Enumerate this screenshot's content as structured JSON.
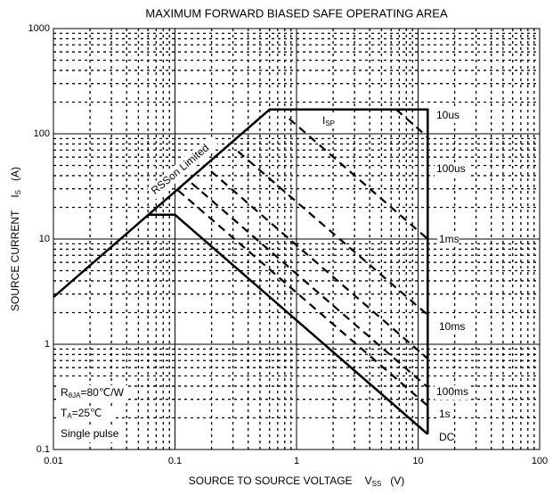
{
  "chart_data": {
    "type": "line",
    "title": "MAXIMUM FORWARD BIASED SAFE OPERATING AREA",
    "xlabel": {
      "text": "SOURCE TO SOURCE VOLTAGE",
      "symbol": "V",
      "sub": "SS",
      "unit": "(V)"
    },
    "ylabel": {
      "text": "SOURCE CURRENT",
      "symbol": "I",
      "sub": "S",
      "unit": "(A)"
    },
    "xlog": true,
    "ylog": true,
    "grid": true,
    "minor_grid": true,
    "xlim": [
      0.01,
      100
    ],
    "ylim": [
      0.1,
      1000
    ],
    "xticks": [
      0.01,
      0.1,
      1,
      10,
      100
    ],
    "yticks": [
      0.1,
      1,
      10,
      100,
      1000
    ],
    "series": [
      {
        "name": "RSSon Limited",
        "color": "#000000",
        "style": "solid",
        "x": [
          0.01,
          0.6,
          12,
          12
        ],
        "values": [
          2.8,
          170,
          170,
          0.14
        ]
      },
      {
        "name": "10us",
        "color": "#000000",
        "style": "dashed",
        "x": [
          6.6,
          12
        ],
        "values": [
          170,
          93
        ]
      },
      {
        "name": "100us",
        "color": "#000000",
        "style": "dashed",
        "x": [
          0.87,
          12
        ],
        "values": [
          139,
          10
        ]
      },
      {
        "name": "1ms",
        "color": "#000000",
        "style": "dashed",
        "x": [
          0.33,
          12
        ],
        "values": [
          68,
          1.9
        ]
      },
      {
        "name": "10ms",
        "color": "#000000",
        "style": "dashed",
        "x": [
          0.198,
          12
        ],
        "values": [
          44,
          0.73
        ]
      },
      {
        "name": "100ms",
        "color": "#000000",
        "style": "dashed",
        "x": [
          0.137,
          12
        ],
        "values": [
          34,
          0.39
        ]
      },
      {
        "name": "1s",
        "color": "#000000",
        "style": "dashed",
        "x": [
          0.106,
          12
        ],
        "values": [
          29,
          0.26
        ]
      },
      {
        "name": "DC",
        "color": "#000000",
        "style": "solid",
        "x": [
          0.06,
          0.1,
          12
        ],
        "values": [
          17,
          17,
          0.14
        ]
      }
    ],
    "annotations": [
      {
        "text": "I",
        "sub": "SP"
      }
    ],
    "notes": [
      {
        "text": "R",
        "sub": "θJA",
        "rest": "=80℃/W"
      },
      {
        "text": "T",
        "sub": "A",
        "rest": "=25℃"
      },
      {
        "text": "Single pulse"
      }
    ]
  }
}
